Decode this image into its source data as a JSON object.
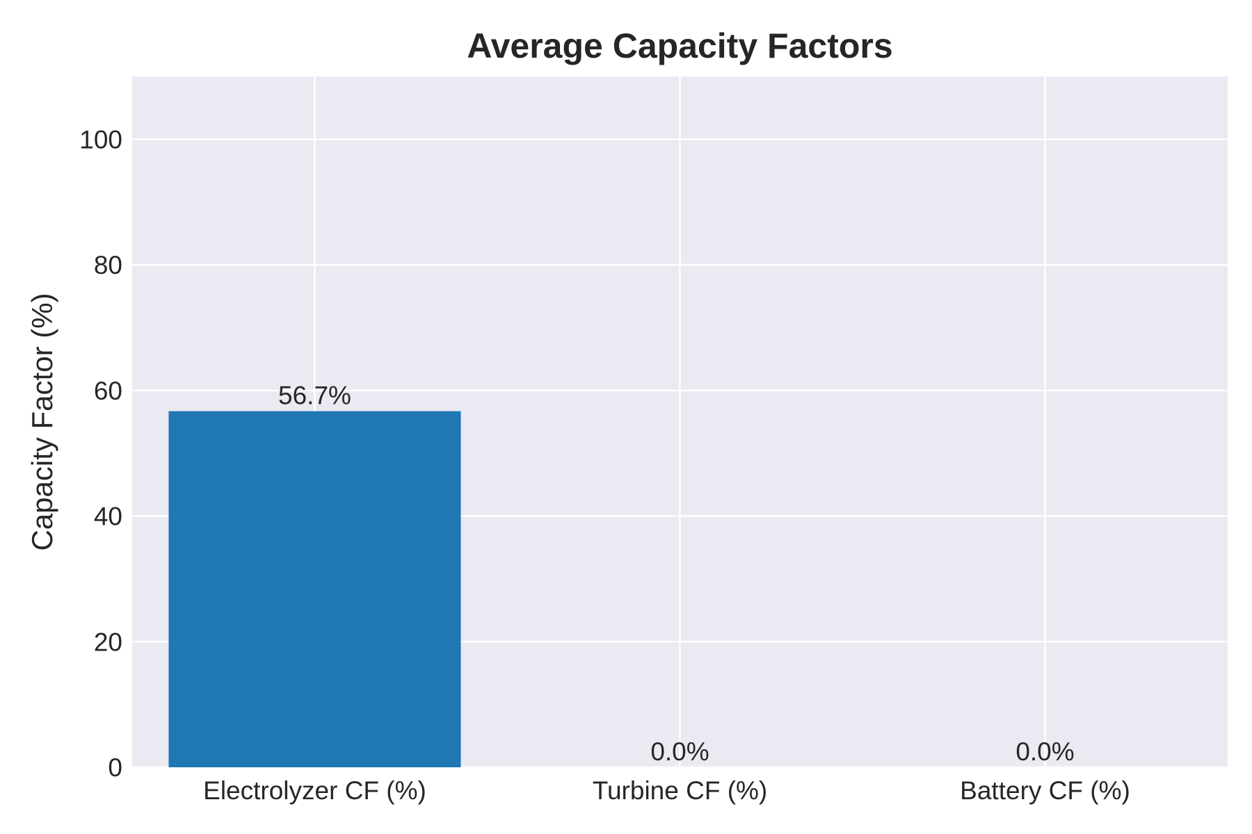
{
  "chart_data": {
    "type": "bar",
    "title": "Average Capacity Factors",
    "xlabel": "",
    "ylabel": "Capacity Factor (%)",
    "categories": [
      "Electrolyzer CF (%)",
      "Turbine CF (%)",
      "Battery CF (%)"
    ],
    "values": [
      56.7,
      0.0,
      0.0
    ],
    "data_labels": [
      "56.7%",
      "0.0%",
      "0.0%"
    ],
    "ylim": [
      0,
      110
    ],
    "yticks": [
      0,
      20,
      40,
      60,
      80,
      100
    ],
    "ytick_labels": [
      "0",
      "20",
      "40",
      "60",
      "80",
      "100"
    ],
    "grid": true,
    "legend": "none",
    "colors": {
      "bar": "#1f77b4",
      "plot_background": "#eaeaf2",
      "grid": "#ffffff",
      "text": "#262626"
    }
  }
}
